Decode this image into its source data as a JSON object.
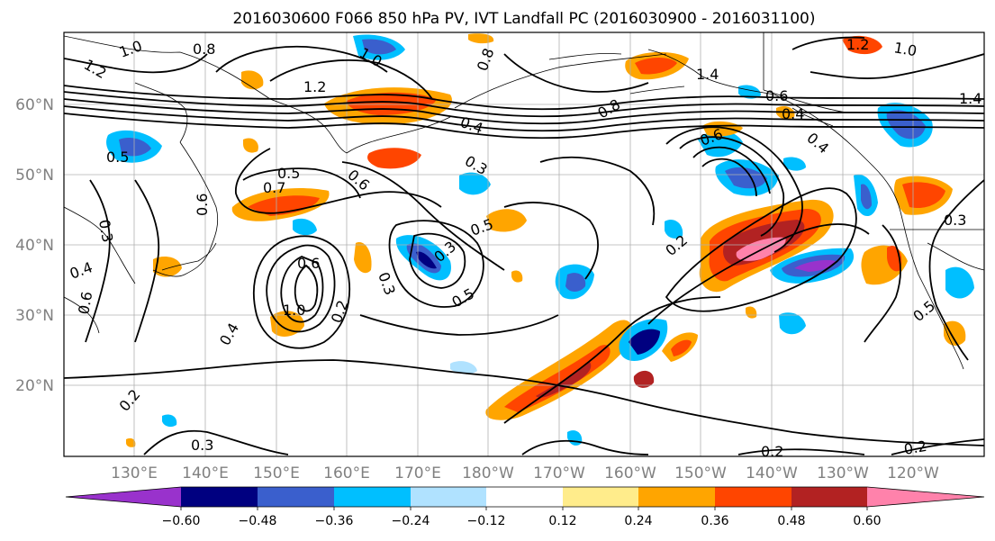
{
  "title": "2016030600 F066 850 hPa PV, IVT Landfall PC (2016030900 - 2016031100)",
  "lat_labels": [
    "60°N",
    "50°N",
    "40°N",
    "30°N",
    "20°N"
  ],
  "lon_labels": [
    "130°E",
    "140°E",
    "150°E",
    "160°E",
    "170°E",
    "180°W",
    "170°W",
    "160°W",
    "150°W",
    "140°W",
    "130°W",
    "120°W"
  ],
  "colorbar": {
    "colors": [
      "#9932cc",
      "#000080",
      "#3a5fcd",
      "#00bfff",
      "#b0e2ff",
      "#ffffff",
      "#ffec8b",
      "#ffa500",
      "#ff4500",
      "#b22222",
      "#ff82ab"
    ],
    "ticks": [
      "−0.60",
      "−0.48",
      "−0.36",
      "−0.24",
      "−0.12",
      "0.12",
      "0.24",
      "0.36",
      "0.48",
      "0.60"
    ]
  },
  "contour_labels": [
    {
      "text": "1.0"
    },
    {
      "text": "0.8"
    },
    {
      "text": "1.2"
    },
    {
      "text": "1.2"
    },
    {
      "text": "1.0"
    },
    {
      "text": "0.8"
    },
    {
      "text": "1.4"
    },
    {
      "text": "0.6"
    },
    {
      "text": "1.2"
    },
    {
      "text": "1.0"
    },
    {
      "text": "1.4"
    },
    {
      "text": "0.4"
    },
    {
      "text": "0.3"
    },
    {
      "text": "0.6"
    },
    {
      "text": "0.8"
    },
    {
      "text": "0.5"
    },
    {
      "text": "0.5"
    },
    {
      "text": "0.7"
    },
    {
      "text": "0.6"
    },
    {
      "text": "0.5"
    },
    {
      "text": "0.3"
    },
    {
      "text": "0.5"
    },
    {
      "text": "0.2"
    },
    {
      "text": "0.6"
    },
    {
      "text": "1.0"
    },
    {
      "text": "0.3"
    },
    {
      "text": "0.2"
    },
    {
      "text": "0.4"
    },
    {
      "text": "0.2"
    },
    {
      "text": "0.3"
    },
    {
      "text": "0.2"
    },
    {
      "text": "0.2"
    },
    {
      "text": "0.5"
    },
    {
      "text": "0.3"
    },
    {
      "text": "0.4"
    },
    {
      "text": "0.6"
    },
    {
      "text": "0.3"
    },
    {
      "text": "0.6"
    },
    {
      "text": "0.4"
    },
    {
      "text": "0.4"
    }
  ]
}
